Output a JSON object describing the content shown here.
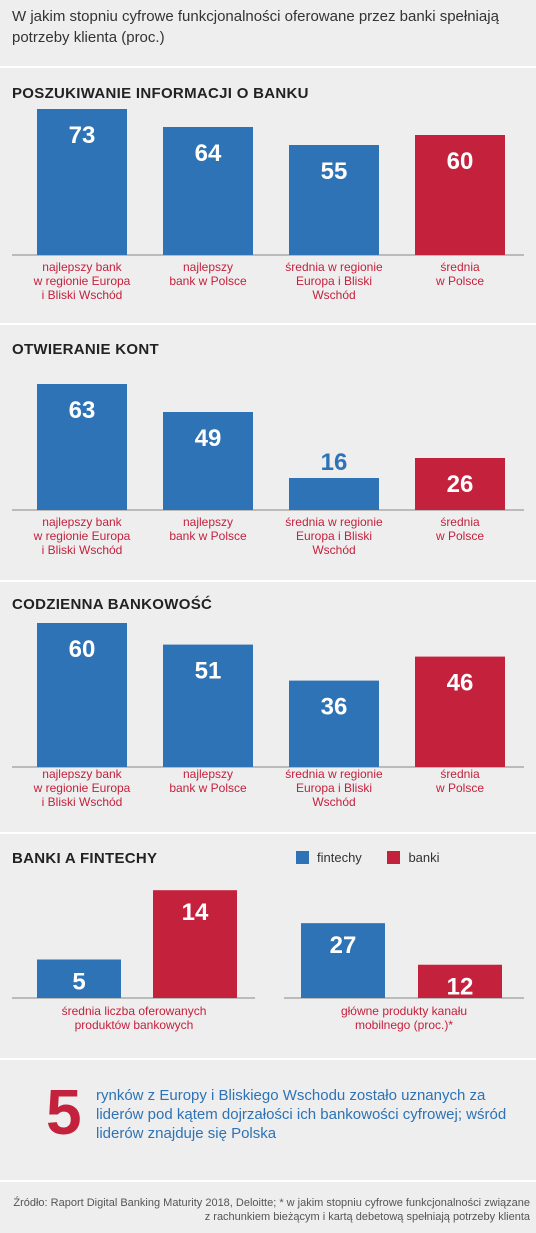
{
  "title": "W jakim stopniu cyfrowe funkcjonalności oferowane przez banki spełniają potrzeby klienta (proc.)",
  "colors": {
    "blue": "#2d73b5",
    "red": "#c4213d"
  },
  "chart_data": [
    {
      "type": "bar",
      "title": "POSZUKIWANIE INFORMACJI O BANKU",
      "categories": [
        "najlepszy bank w regionie Europa i Bliski Wschód",
        "najlepszy bank w Polsce",
        "średnia w regionie Europa i Bliski Wschód",
        "średnia w Polsce"
      ],
      "values": [
        73,
        64,
        55,
        60
      ],
      "bar_colors": [
        "blue",
        "blue",
        "blue",
        "red"
      ],
      "ylim": [
        0,
        80
      ]
    },
    {
      "type": "bar",
      "title": "OTWIERANIE KONT",
      "categories": [
        "najlepszy bank w regionie Europa i Bliski Wschód",
        "najlepszy bank w Polsce",
        "średnia w regionie Europa i Bliski Wschód",
        "średnia w Polsce"
      ],
      "values": [
        63,
        49,
        16,
        26
      ],
      "bar_colors": [
        "blue",
        "blue",
        "blue",
        "red"
      ],
      "ylim": [
        0,
        80
      ]
    },
    {
      "type": "bar",
      "title": "CODZIENNA BANKOWOŚĆ",
      "categories": [
        "najlepszy bank w regionie Europa i Bliski Wschód",
        "najlepszy bank w Polsce",
        "średnia w regionie Europa i Bliski Wschód",
        "średnia w Polsce"
      ],
      "values": [
        60,
        51,
        36,
        46
      ],
      "bar_colors": [
        "blue",
        "blue",
        "blue",
        "red"
      ],
      "ylim": [
        0,
        80
      ]
    },
    {
      "type": "bar",
      "title": "BANKI A FINTECHY",
      "legend": [
        "fintechy",
        "banki"
      ],
      "categories": [
        "średnia liczba oferowanych produktów bankowych",
        "główne produkty kanału mobilnego (proc.)*"
      ],
      "series": [
        {
          "name": "fintechy",
          "values": [
            5,
            27
          ]
        },
        {
          "name": "banki",
          "values": [
            14,
            12
          ]
        }
      ]
    }
  ],
  "sections": [
    {
      "title": "POSZUKIWANIE INFORMACJI O BANKU",
      "labels": [
        "najlepszy bank\nw regionie Europa\ni Bliski Wschód",
        "najlepszy\nbank w Polsce",
        "średnia w regionie\nEuropa i Bliski\nWschód",
        "średnia\nw Polsce"
      ]
    },
    {
      "title": "OTWIERANIE KONT",
      "labels": [
        "najlepszy bank\nw regionie Europa\ni Bliski Wschód",
        "najlepszy\nbank w Polsce",
        "średnia w regionie\nEuropa i Bliski\nWschód",
        "średnia\nw Polsce"
      ]
    },
    {
      "title": "CODZIENNA BANKOWOŚĆ",
      "labels": [
        "najlepszy bank\nw regionie Europa\ni Bliski Wschód",
        "najlepszy\nbank w Polsce",
        "średnia w regionie\nEuropa i Bliski\nWschód",
        "średnia\nw Polsce"
      ]
    },
    {
      "title": "BANKI A FINTECHY",
      "labels": [
        "średnia liczba oferowanych\nproduktów bankowych",
        "główne produkty kanału\nmobilnego (proc.)*"
      ]
    }
  ],
  "legend": {
    "fintechy": "fintechy",
    "banki": "banki"
  },
  "callout": {
    "number": "5",
    "text": "rynków z Europy i Bliskiego Wschodu zostało uznanych za liderów pod kątem dojrzałości ich bankowości cyfrowej; wśród liderów znajduje się Polska"
  },
  "source": "Źródło: Raport Digital Banking Maturity 2018, Deloitte; * w jakim stopniu cyfrowe funkcjonalności związane z rachunkiem bieżącym i kartą debetową spełniają potrzeby klienta"
}
